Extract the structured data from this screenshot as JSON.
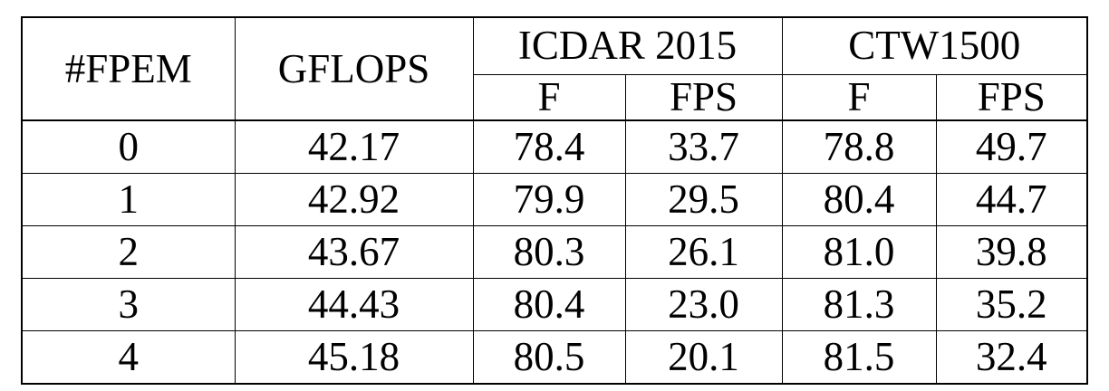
{
  "table": {
    "headers": {
      "fpem": "#FPEM",
      "gflops": "GFLOPS",
      "group1": "ICDAR 2015",
      "group2": "CTW1500",
      "sub": [
        "F",
        "FPS",
        "F",
        "FPS"
      ]
    },
    "rows": [
      {
        "fpem": "0",
        "gflops": "42.17",
        "icdar_f": "78.4",
        "icdar_fps": "33.7",
        "ctw_f": "78.8",
        "ctw_fps": "49.7",
        "bold": [
          "gflops",
          "icdar_fps",
          "ctw_fps"
        ]
      },
      {
        "fpem": "1",
        "gflops": "42.92",
        "icdar_f": "79.9",
        "icdar_fps": "29.5",
        "ctw_f": "80.4",
        "ctw_fps": "44.7",
        "bold": []
      },
      {
        "fpem": "2",
        "gflops": "43.67",
        "icdar_f": "80.3",
        "icdar_fps": "26.1",
        "ctw_f": "81.0",
        "ctw_fps": "39.8",
        "bold": []
      },
      {
        "fpem": "3",
        "gflops": "44.43",
        "icdar_f": "80.4",
        "icdar_fps": "23.0",
        "ctw_f": "81.3",
        "ctw_fps": "35.2",
        "bold": []
      },
      {
        "fpem": "4",
        "gflops": "45.18",
        "icdar_f": "80.5",
        "icdar_fps": "20.1",
        "ctw_f": "81.5",
        "ctw_fps": "32.4",
        "bold": [
          "icdar_f",
          "ctw_f"
        ]
      }
    ]
  }
}
